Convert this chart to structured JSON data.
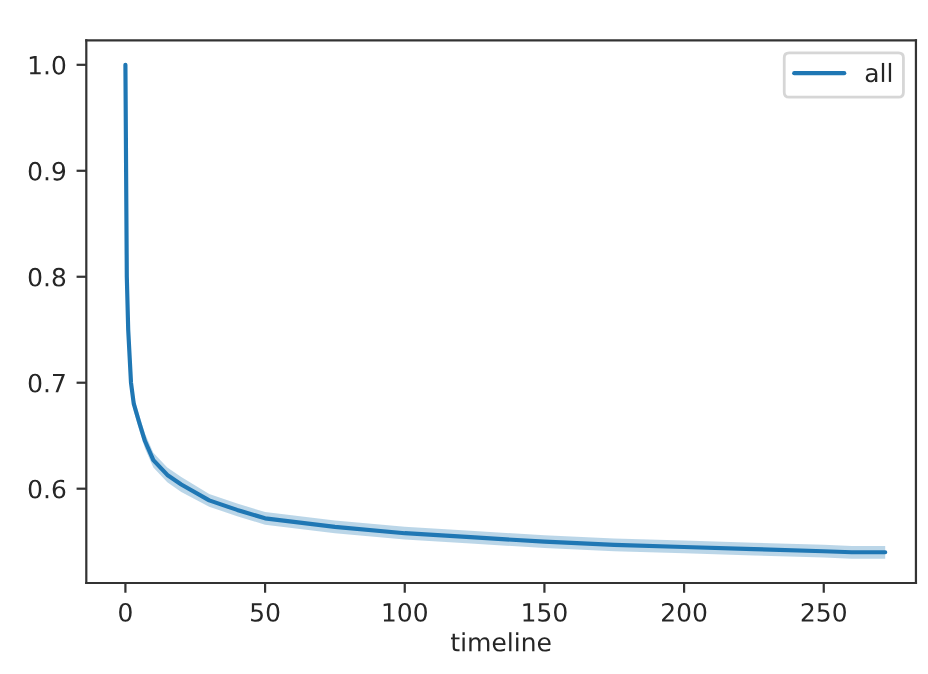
{
  "chart_data": {
    "type": "line",
    "xlabel": "timeline",
    "legend": "upper right",
    "xlim": [
      -14,
      283
    ],
    "ylim": [
      0.511,
      1.023
    ],
    "xticks": [
      0,
      50,
      100,
      150,
      200,
      250
    ],
    "yticks": [
      {
        "value": 0.6,
        "label": "0.6"
      },
      {
        "value": 0.7,
        "label": "0.7"
      },
      {
        "value": 0.8,
        "label": "0.8"
      },
      {
        "value": 0.9,
        "label": "0.9"
      },
      {
        "value": 1.0,
        "label": "1.0"
      }
    ],
    "grid": false,
    "series": [
      {
        "name": "all",
        "color": "#1f77b4",
        "x": [
          0,
          0.5,
          1,
          2,
          3,
          5,
          7,
          10,
          15,
          20,
          30,
          40,
          50,
          75,
          100,
          125,
          150,
          175,
          200,
          225,
          250,
          260,
          272
        ],
        "values": [
          1.0,
          0.8,
          0.75,
          0.7,
          0.68,
          0.662,
          0.645,
          0.627,
          0.613,
          0.604,
          0.589,
          0.58,
          0.572,
          0.564,
          0.558,
          0.554,
          0.55,
          0.547,
          0.545,
          0.543,
          0.541,
          0.54,
          0.54
        ],
        "lower": [
          1.0,
          0.792,
          0.742,
          0.692,
          0.673,
          0.655,
          0.638,
          0.62,
          0.606,
          0.597,
          0.583,
          0.574,
          0.566,
          0.558,
          0.552,
          0.548,
          0.544,
          0.541,
          0.539,
          0.537,
          0.535,
          0.534,
          0.534
        ],
        "upper": [
          1.0,
          0.808,
          0.758,
          0.708,
          0.687,
          0.669,
          0.652,
          0.634,
          0.62,
          0.611,
          0.595,
          0.586,
          0.578,
          0.57,
          0.564,
          0.56,
          0.556,
          0.553,
          0.551,
          0.549,
          0.547,
          0.546,
          0.546
        ]
      }
    ]
  }
}
